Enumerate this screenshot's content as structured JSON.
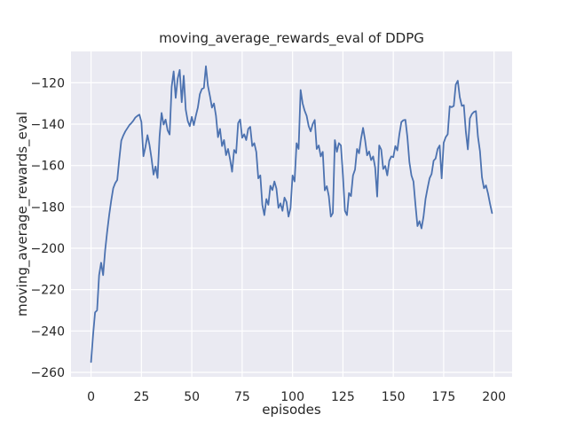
{
  "chart_data": {
    "type": "line",
    "title": "moving_average_rewards_eval of DDPG",
    "xlabel": "episodes",
    "ylabel": "moving_average_rewards_eval",
    "legend": null,
    "grid": true,
    "style": "seaborn-darkgrid",
    "plot_bg_color": "#eaeaf2",
    "grid_color": "#ffffff",
    "line_color": "#4c72b0",
    "xlim": [
      -9.95,
      208.95
    ],
    "ylim": [
      -262.15,
      -104.85
    ],
    "xticks": [
      0,
      25,
      50,
      75,
      100,
      125,
      150,
      175,
      200
    ],
    "yticks": [
      -120,
      -140,
      -160,
      -180,
      -200,
      -220,
      -240,
      -260
    ],
    "x_start": 0,
    "x_step": 1,
    "values": [
      -255,
      -242,
      -231,
      -230,
      -213,
      -207,
      -213,
      -201,
      -192,
      -184,
      -177,
      -171,
      -168.5,
      -167,
      -157,
      -148,
      -145.5,
      -143.5,
      -142,
      -140.5,
      -139.5,
      -138.3,
      -136.8,
      -136,
      -135.4,
      -139,
      -155.5,
      -151,
      -145.3,
      -150,
      -156.5,
      -164.4,
      -160.5,
      -166,
      -146,
      -134.6,
      -140.2,
      -137.8,
      -143,
      -145,
      -122,
      -114.5,
      -127.3,
      -118,
      -113.8,
      -129.4,
      -116.6,
      -133,
      -138.5,
      -141,
      -136.5,
      -140.5,
      -136,
      -132,
      -125.5,
      -123,
      -122.5,
      -112,
      -121.5,
      -126.4,
      -132,
      -130,
      -136,
      -146.3,
      -142.3,
      -150.6,
      -147.7,
      -155,
      -152,
      -157,
      -163,
      -152.5,
      -154,
      -139.5,
      -137.8,
      -146.6,
      -144.9,
      -147.7,
      -142.3,
      -141.3,
      -150.6,
      -149.2,
      -153.4,
      -166.2,
      -164.8,
      -179,
      -184,
      -176.2,
      -179,
      -169.8,
      -171.9,
      -167.7,
      -171.2,
      -180.5,
      -178.3,
      -181.9,
      -175.5,
      -177.6,
      -184.7,
      -180.5,
      -164.8,
      -167.7,
      -149.2,
      -152,
      -123.5,
      -130,
      -133.5,
      -136,
      -141,
      -143.5,
      -140,
      -138,
      -152,
      -150.3,
      -155.6,
      -153.4,
      -172,
      -170,
      -174.8,
      -184.7,
      -183,
      -147.7,
      -153.4,
      -149.2,
      -150.3,
      -164.8,
      -181.9,
      -184,
      -173.3,
      -174.8,
      -164.8,
      -162,
      -152,
      -154.1,
      -147,
      -141.8,
      -147.7,
      -155.1,
      -153.2,
      -157.4,
      -155.6,
      -161,
      -175,
      -150.3,
      -152.3,
      -161.7,
      -160.2,
      -164.8,
      -157.7,
      -155.6,
      -156,
      -150.6,
      -152.7,
      -145,
      -139,
      -138.1,
      -137.9,
      -146.3,
      -158.4,
      -164.8,
      -167.7,
      -179,
      -189.3,
      -186.9,
      -190.4,
      -184.7,
      -176.2,
      -171,
      -166.2,
      -164.1,
      -157.7,
      -156.6,
      -152,
      -150.3,
      -166.2,
      -149,
      -146.3,
      -144.9,
      -131.4,
      -131.8,
      -131.2,
      -120.9,
      -119,
      -127,
      -131.2,
      -130.8,
      -143.6,
      -152.2,
      -137.2,
      -135.1,
      -134.1,
      -133.7,
      -146,
      -153,
      -165.7,
      -171,
      -169.6,
      -173.5,
      -178.5,
      -183
    ]
  }
}
